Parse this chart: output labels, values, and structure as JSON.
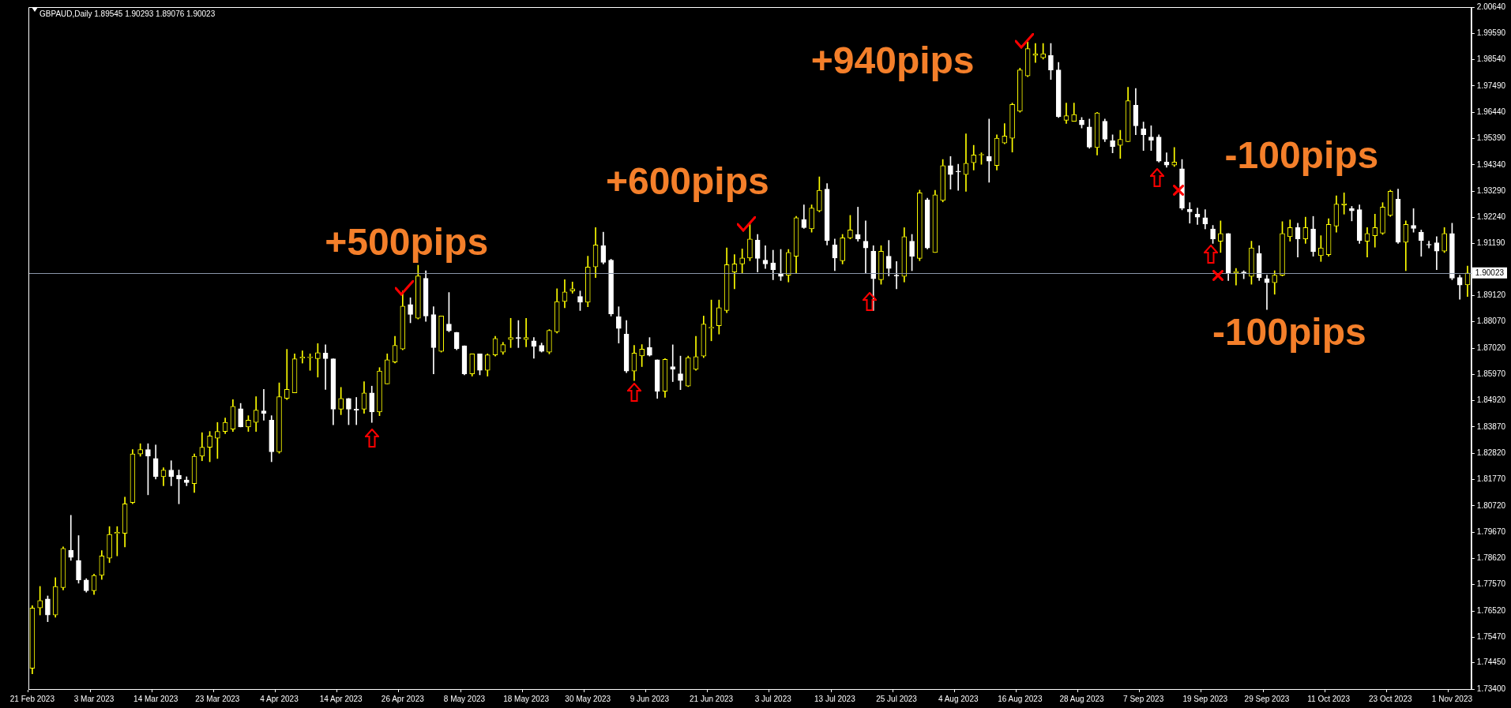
{
  "chart_data": {
    "type": "candlestick",
    "title": "GBPAUD,Daily 1.89545 1.90293 1.89076 1.90023",
    "categories": [
      "21 Feb 2023",
      null,
      null,
      null,
      null,
      null,
      null,
      null,
      "3 Mar 2023",
      null,
      null,
      null,
      null,
      null,
      null,
      null,
      "14 Mar 2023",
      null,
      null,
      null,
      null,
      null,
      null,
      null,
      "23 Mar 2023",
      null,
      null,
      null,
      null,
      null,
      null,
      null,
      "4 Apr 2023",
      null,
      null,
      null,
      null,
      null,
      null,
      null,
      "14 Apr 2023",
      null,
      null,
      null,
      null,
      null,
      null,
      null,
      "26 Apr 2023",
      null,
      null,
      null,
      null,
      null,
      null,
      null,
      "8 May 2023",
      null,
      null,
      null,
      null,
      null,
      null,
      null,
      "18 May 2023",
      null,
      null,
      null,
      null,
      null,
      null,
      null,
      "30 May 2023",
      null,
      null,
      null,
      null,
      null,
      null,
      null,
      "9 Jun 2023",
      null,
      null,
      null,
      null,
      null,
      null,
      null,
      "21 Jun 2023",
      null,
      null,
      null,
      null,
      null,
      null,
      null,
      "3 Jul 2023",
      null,
      null,
      null,
      null,
      null,
      null,
      null,
      "13 Jul 2023",
      null,
      null,
      null,
      null,
      null,
      null,
      null,
      "25 Jul 2023",
      null,
      null,
      null,
      null,
      null,
      null,
      null,
      "4 Aug 2023",
      null,
      null,
      null,
      null,
      null,
      null,
      null,
      "16 Aug 2023",
      null,
      null,
      null,
      null,
      null,
      null,
      null,
      "28 Aug 2023",
      null,
      null,
      null,
      null,
      null,
      null,
      null,
      "7 Sep 2023",
      null,
      null,
      null,
      null,
      null,
      null,
      null,
      "19 Sep 2023",
      null,
      null,
      null,
      null,
      null,
      null,
      null,
      "29 Sep 2023",
      null,
      null,
      null,
      null,
      null,
      null,
      null,
      "11 Oct 2023",
      null,
      null,
      null,
      null,
      null,
      null,
      null,
      "23 Oct 2023",
      null,
      null,
      null,
      null,
      null,
      null,
      null,
      "1 Nov 2023",
      null,
      null
    ],
    "ohlc": [
      [
        1.7423,
        1.7673,
        1.7401,
        1.7664
      ],
      [
        1.7664,
        1.775,
        1.7636,
        1.7694
      ],
      [
        1.77,
        1.7712,
        1.7609,
        1.7636
      ],
      [
        1.7636,
        1.7785,
        1.7627,
        1.775
      ],
      [
        1.7745,
        1.7908,
        1.7736,
        1.7902
      ],
      [
        1.7895,
        1.8034,
        1.7854,
        1.7866
      ],
      [
        1.7854,
        1.7953,
        1.7763,
        1.7776
      ],
      [
        1.7776,
        1.7781,
        1.7727,
        1.7733
      ],
      [
        1.7733,
        1.7799,
        1.7718,
        1.7794
      ],
      [
        1.7794,
        1.7893,
        1.7778,
        1.7872
      ],
      [
        1.7863,
        1.7989,
        1.7845,
        1.7958
      ],
      [
        1.7962,
        1.7989,
        1.7872,
        1.7966
      ],
      [
        1.7962,
        1.8107,
        1.7908,
        1.808
      ],
      [
        1.8085,
        1.8297,
        1.808,
        1.8279
      ],
      [
        1.8279,
        1.832,
        1.827,
        1.8297
      ],
      [
        1.8297,
        1.832,
        1.8116,
        1.827
      ],
      [
        1.8261,
        1.8315,
        1.8179,
        1.8188
      ],
      [
        1.8188,
        1.8224,
        1.8152,
        1.8215
      ],
      [
        1.8215,
        1.8252,
        1.8152,
        1.8188
      ],
      [
        1.8194,
        1.8215,
        1.808,
        1.8179
      ],
      [
        1.8175,
        1.8188,
        1.8152,
        1.8165
      ],
      [
        1.8161,
        1.8279,
        1.8125,
        1.827
      ],
      [
        1.827,
        1.8364,
        1.8252,
        1.8306
      ],
      [
        1.8306,
        1.8369,
        1.8248,
        1.8351
      ],
      [
        1.8342,
        1.8405,
        1.8261,
        1.8369
      ],
      [
        1.8369,
        1.8423,
        1.836,
        1.8405
      ],
      [
        1.8378,
        1.8496,
        1.8369,
        1.8469
      ],
      [
        1.846,
        1.8481,
        1.8387,
        1.8387
      ],
      [
        1.8387,
        1.8432,
        1.8369,
        1.8414
      ],
      [
        1.8405,
        1.8508,
        1.8369,
        1.8454
      ],
      [
        1.8451,
        1.8537,
        1.8414,
        1.8441
      ],
      [
        1.8414,
        1.8432,
        1.8248,
        1.8288
      ],
      [
        1.8288,
        1.8563,
        1.8282,
        1.8508
      ],
      [
        1.8501,
        1.8697,
        1.8496,
        1.8537
      ],
      [
        1.8523,
        1.8679,
        1.8523,
        1.8659
      ],
      [
        1.8662,
        1.8691,
        1.8642,
        1.8666
      ],
      [
        1.8664,
        1.8679,
        1.8613,
        1.8666
      ],
      [
        1.866,
        1.872,
        1.8586,
        1.8684
      ],
      [
        1.8682,
        1.8715,
        1.8537,
        1.866
      ],
      [
        1.8659,
        1.8659,
        1.8396,
        1.8458
      ],
      [
        1.8458,
        1.8545,
        1.8436,
        1.8501
      ],
      [
        1.8501,
        1.8501,
        1.8396,
        1.8458
      ],
      [
        1.8458,
        1.8505,
        1.8396,
        1.8454
      ],
      [
        1.8458,
        1.8568,
        1.8441,
        1.8523
      ],
      [
        1.8523,
        1.855,
        1.8405,
        1.8447
      ],
      [
        1.8447,
        1.8624,
        1.8432,
        1.861
      ],
      [
        1.8559,
        1.8679,
        1.8559,
        1.8655
      ],
      [
        1.8646,
        1.8749,
        1.8642,
        1.8713
      ],
      [
        1.8698,
        1.893,
        1.8695,
        1.887
      ],
      [
        1.8876,
        1.8903,
        1.8803,
        1.8836
      ],
      [
        1.8821,
        1.9033,
        1.8818,
        1.899
      ],
      [
        1.8981,
        1.9011,
        1.8809,
        1.883
      ],
      [
        1.8836,
        1.8867,
        1.8599,
        1.8704
      ],
      [
        1.8689,
        1.883,
        1.8686,
        1.883
      ],
      [
        1.8798,
        1.8924,
        1.8767,
        1.8771
      ],
      [
        1.8765,
        1.8765,
        1.8695,
        1.87
      ],
      [
        1.8711,
        1.8711,
        1.8595,
        1.8599
      ],
      [
        1.8599,
        1.8679,
        1.859,
        1.8679
      ],
      [
        1.8679,
        1.8679,
        1.8595,
        1.8613
      ],
      [
        1.8613,
        1.8679,
        1.859,
        1.8675
      ],
      [
        1.8675,
        1.8749,
        1.867,
        1.874
      ],
      [
        1.8686,
        1.8725,
        1.8677,
        1.8716
      ],
      [
        1.8736,
        1.8821,
        1.8704,
        1.8744
      ],
      [
        1.8744,
        1.8812,
        1.8704,
        1.874
      ],
      [
        1.8736,
        1.8821,
        1.8707,
        1.8744
      ],
      [
        1.8731,
        1.8744,
        1.8661,
        1.8709
      ],
      [
        1.8713,
        1.8722,
        1.8686,
        1.8689
      ],
      [
        1.8686,
        1.8776,
        1.8679,
        1.8773
      ],
      [
        1.8767,
        1.8939,
        1.8762,
        1.8888
      ],
      [
        1.8888,
        1.8975,
        1.8863,
        1.8926
      ],
      [
        1.893,
        1.8966,
        1.8921,
        1.8939
      ],
      [
        1.8908,
        1.893,
        1.8852,
        1.8885
      ],
      [
        1.8885,
        1.9069,
        1.8867,
        1.9026
      ],
      [
        1.9026,
        1.9183,
        1.8984,
        1.9114
      ],
      [
        1.9111,
        1.9165,
        1.9038,
        1.9044
      ],
      [
        1.9053,
        1.9057,
        1.883,
        1.8839
      ],
      [
        1.8827,
        1.8867,
        1.8722,
        1.878
      ],
      [
        1.8758,
        1.8812,
        1.8604,
        1.861
      ],
      [
        1.861,
        1.8713,
        1.8572,
        1.8682
      ],
      [
        1.8671,
        1.8716,
        1.8628,
        1.8698
      ],
      [
        1.8704,
        1.8744,
        1.867,
        1.8673
      ],
      [
        1.8655,
        1.8655,
        1.8501,
        1.853
      ],
      [
        1.853,
        1.866,
        1.8505,
        1.8657
      ],
      [
        1.8628,
        1.8715,
        1.8568,
        1.8617
      ],
      [
        1.8599,
        1.867,
        1.8536,
        1.8572
      ],
      [
        1.855,
        1.867,
        1.8548,
        1.8664
      ],
      [
        1.8617,
        1.8749,
        1.8613,
        1.8668
      ],
      [
        1.867,
        1.883,
        1.8664,
        1.8798
      ],
      [
        1.8782,
        1.8894,
        1.8731,
        1.8785
      ],
      [
        1.8791,
        1.8894,
        1.8758,
        1.8863
      ],
      [
        1.8852,
        1.9102,
        1.8843,
        1.9035
      ],
      [
        1.9006,
        1.9075,
        1.8939,
        1.9038
      ],
      [
        1.9038,
        1.9098,
        1.9002,
        1.9062
      ],
      [
        1.9062,
        1.9198,
        1.9051,
        1.9138
      ],
      [
        1.9134,
        1.9156,
        1.9006,
        1.906
      ],
      [
        1.9053,
        1.9111,
        1.902,
        1.9038
      ],
      [
        1.9042,
        1.9093,
        1.8975,
        1.9015
      ],
      [
        1.8997,
        1.9096,
        1.8972,
        1.8988
      ],
      [
        1.8993,
        1.9096,
        1.8966,
        1.9084
      ],
      [
        1.9069,
        1.9228,
        1.9002,
        1.9223
      ],
      [
        1.9216,
        1.9274,
        1.918,
        1.9183
      ],
      [
        1.9178,
        1.9274,
        1.9165,
        1.9261
      ],
      [
        1.925,
        1.9386,
        1.9246,
        1.9332
      ],
      [
        1.9337,
        1.9359,
        1.9114,
        1.9132
      ],
      [
        1.9114,
        1.9138,
        1.9011,
        1.9062
      ],
      [
        1.9051,
        1.9156,
        1.9038,
        1.9142
      ],
      [
        1.9142,
        1.9232,
        1.9138,
        1.9174
      ],
      [
        1.9156,
        1.9265,
        1.9129,
        1.9138
      ],
      [
        1.9129,
        1.921,
        1.9002,
        1.9102
      ],
      [
        1.9089,
        1.9111,
        1.8852,
        1.8979
      ],
      [
        1.8975,
        1.9111,
        1.8957,
        1.9089
      ],
      [
        1.9069,
        1.9132,
        1.899,
        1.902
      ],
      [
        1.8993,
        1.9048,
        1.8939,
        1.899
      ],
      [
        1.8988,
        1.9183,
        1.8966,
        1.9147
      ],
      [
        1.9129,
        1.9156,
        1.9011,
        1.9069
      ],
      [
        1.906,
        1.9333,
        1.9051,
        1.9322
      ],
      [
        1.9294,
        1.9301,
        1.9098,
        1.9102
      ],
      [
        1.9084,
        1.9332,
        1.9084,
        1.9314
      ],
      [
        1.9292,
        1.9455,
        1.9286,
        1.9431
      ],
      [
        1.9431,
        1.9467,
        1.9337,
        1.9395
      ],
      [
        1.9409,
        1.9436,
        1.9332,
        1.9406
      ],
      [
        1.9395,
        1.9558,
        1.9328,
        1.944
      ],
      [
        1.9442,
        1.9512,
        1.9413,
        1.9473
      ],
      [
        1.9473,
        1.9482,
        1.9436,
        1.9476
      ],
      [
        1.9467,
        1.9617,
        1.9364,
        1.9449
      ],
      [
        1.9431,
        1.9554,
        1.9413,
        1.954
      ],
      [
        1.9521,
        1.9599,
        1.9518,
        1.9549
      ],
      [
        1.954,
        1.9681,
        1.9485,
        1.9675
      ],
      [
        1.9648,
        1.982,
        1.9644,
        1.9813
      ],
      [
        1.9789,
        1.9925,
        1.9786,
        1.9898
      ],
      [
        1.9871,
        1.9919,
        1.9843,
        1.9878
      ],
      [
        1.9862,
        1.9919,
        1.9856,
        1.9878
      ],
      [
        1.9871,
        1.9919,
        1.9775,
        1.9813
      ],
      [
        1.9813,
        1.9843,
        1.9623,
        1.9626
      ],
      [
        1.9612,
        1.9681,
        1.9599,
        1.963
      ],
      [
        1.9608,
        1.9681,
        1.9608,
        1.9635
      ],
      [
        1.9612,
        1.9623,
        1.9581,
        1.9594
      ],
      [
        1.9585,
        1.9617,
        1.95,
        1.9505
      ],
      [
        1.9503,
        1.9644,
        1.9473,
        1.9641
      ],
      [
        1.9608,
        1.9617,
        1.9527,
        1.9536
      ],
      [
        1.953,
        1.9554,
        1.9482,
        1.9507
      ],
      [
        1.9512,
        1.9572,
        1.946,
        1.9536
      ],
      [
        1.9527,
        1.9744,
        1.9527,
        1.969
      ],
      [
        1.9672,
        1.9739,
        1.9554,
        1.959
      ],
      [
        1.9578,
        1.9605,
        1.9491,
        1.9554
      ],
      [
        1.9545,
        1.959,
        1.9491,
        1.9532
      ],
      [
        1.9545,
        1.9554,
        1.9445,
        1.9449
      ],
      [
        1.9445,
        1.9482,
        1.9424,
        1.9433
      ],
      [
        1.9433,
        1.9503,
        1.9427,
        1.9445
      ],
      [
        1.9418,
        1.9455,
        1.9254,
        1.9261
      ],
      [
        1.9257,
        1.9283,
        1.9201,
        1.9246
      ],
      [
        1.9237,
        1.9261,
        1.9196,
        1.9225
      ],
      [
        1.9223,
        1.9255,
        1.9178,
        1.9198
      ],
      [
        1.9178,
        1.9192,
        1.912,
        1.9138
      ],
      [
        1.9129,
        1.921,
        1.9084,
        1.916
      ],
      [
        1.916,
        1.916,
        1.8972,
        1.9002
      ],
      [
        1.9002,
        1.902,
        1.8954,
        1.9008
      ],
      [
        1.9006,
        1.9011,
        1.8979,
        1.8999
      ],
      [
        1.8988,
        1.9129,
        1.8957,
        1.9102
      ],
      [
        1.908,
        1.9111,
        1.8972,
        1.8984
      ],
      [
        1.8979,
        1.8993,
        1.8856,
        1.8963
      ],
      [
        1.8963,
        1.9011,
        1.8917,
        1.8993
      ],
      [
        1.8993,
        1.9207,
        1.899,
        1.916
      ],
      [
        1.9147,
        1.9214,
        1.9129,
        1.9183
      ],
      [
        1.9183,
        1.9201,
        1.9066,
        1.9138
      ],
      [
        1.9138,
        1.9225,
        1.912,
        1.9183
      ],
      [
        1.9178,
        1.9228,
        1.9069,
        1.9087
      ],
      [
        1.9071,
        1.9151,
        1.9048,
        1.9102
      ],
      [
        1.9075,
        1.9219,
        1.9069,
        1.9196
      ],
      [
        1.9189,
        1.931,
        1.9165,
        1.9277
      ],
      [
        1.9274,
        1.9322,
        1.9237,
        1.9279
      ],
      [
        1.9259,
        1.9268,
        1.921,
        1.925
      ],
      [
        1.9255,
        1.9274,
        1.912,
        1.9132
      ],
      [
        1.9129,
        1.9183,
        1.9066,
        1.916
      ],
      [
        1.9151,
        1.9237,
        1.9105,
        1.9183
      ],
      [
        1.9161,
        1.9283,
        1.9156,
        1.9265
      ],
      [
        1.9232,
        1.9333,
        1.9228,
        1.9328
      ],
      [
        1.9297,
        1.9337,
        1.912,
        1.9125
      ],
      [
        1.9125,
        1.921,
        1.9011,
        1.9196
      ],
      [
        1.9192,
        1.9259,
        1.9165,
        1.918
      ],
      [
        1.9165,
        1.9174,
        1.9069,
        1.9132
      ],
      [
        1.9116,
        1.9129,
        1.9102,
        1.9114
      ],
      [
        1.9123,
        1.9147,
        1.9015,
        1.9089
      ],
      [
        1.9089,
        1.9183,
        1.9084,
        1.916
      ],
      [
        1.916,
        1.9201,
        1.8975,
        1.8981
      ],
      [
        1.8984,
        1.8993,
        1.8897,
        1.8954
      ],
      [
        1.89545,
        1.90293,
        1.89076,
        1.90023
      ]
    ],
    "ylim": [
      1.734,
      2.0064
    ],
    "yticks": [
      {
        "value": 1.734,
        "label": "1.73400"
      },
      {
        "value": 1.7445,
        "label": "1.74450"
      },
      {
        "value": 1.7547,
        "label": "1.75470"
      },
      {
        "value": 1.7652,
        "label": "1.76520"
      },
      {
        "value": 1.7757,
        "label": "1.77570"
      },
      {
        "value": 1.7862,
        "label": "1.78620"
      },
      {
        "value": 1.7967,
        "label": "1.79670"
      },
      {
        "value": 1.8072,
        "label": "1.80720"
      },
      {
        "value": 1.8177,
        "label": "1.81770"
      },
      {
        "value": 1.8282,
        "label": "1.82820"
      },
      {
        "value": 1.8387,
        "label": "1.83870"
      },
      {
        "value": 1.8492,
        "label": "1.84920"
      },
      {
        "value": 1.8597,
        "label": "1.85970"
      },
      {
        "value": 1.8702,
        "label": "1.87020"
      },
      {
        "value": 1.8807,
        "label": "1.88070"
      },
      {
        "value": 1.8912,
        "label": "1.89120"
      },
      {
        "value": 1.9119,
        "label": "1.91190"
      },
      {
        "value": 1.9224,
        "label": "1.92240"
      },
      {
        "value": 1.9329,
        "label": "1.93290"
      },
      {
        "value": 1.9434,
        "label": "1.94340"
      },
      {
        "value": 1.9539,
        "label": "1.95390"
      },
      {
        "value": 1.9644,
        "label": "1.96440"
      },
      {
        "value": 1.9749,
        "label": "1.97490"
      },
      {
        "value": 1.9854,
        "label": "1.98540"
      },
      {
        "value": 1.9959,
        "label": "1.99590"
      },
      {
        "value": 2.0064,
        "label": "2.00640"
      }
    ],
    "ref_lines": [
      {
        "axis": "y",
        "value": 1.90023,
        "label": "1.90023",
        "color": "#8a96a8"
      }
    ],
    "annotations": [
      "+500pips",
      "+600pips",
      "+940pips",
      "-100pips",
      "-100pips"
    ]
  }
}
